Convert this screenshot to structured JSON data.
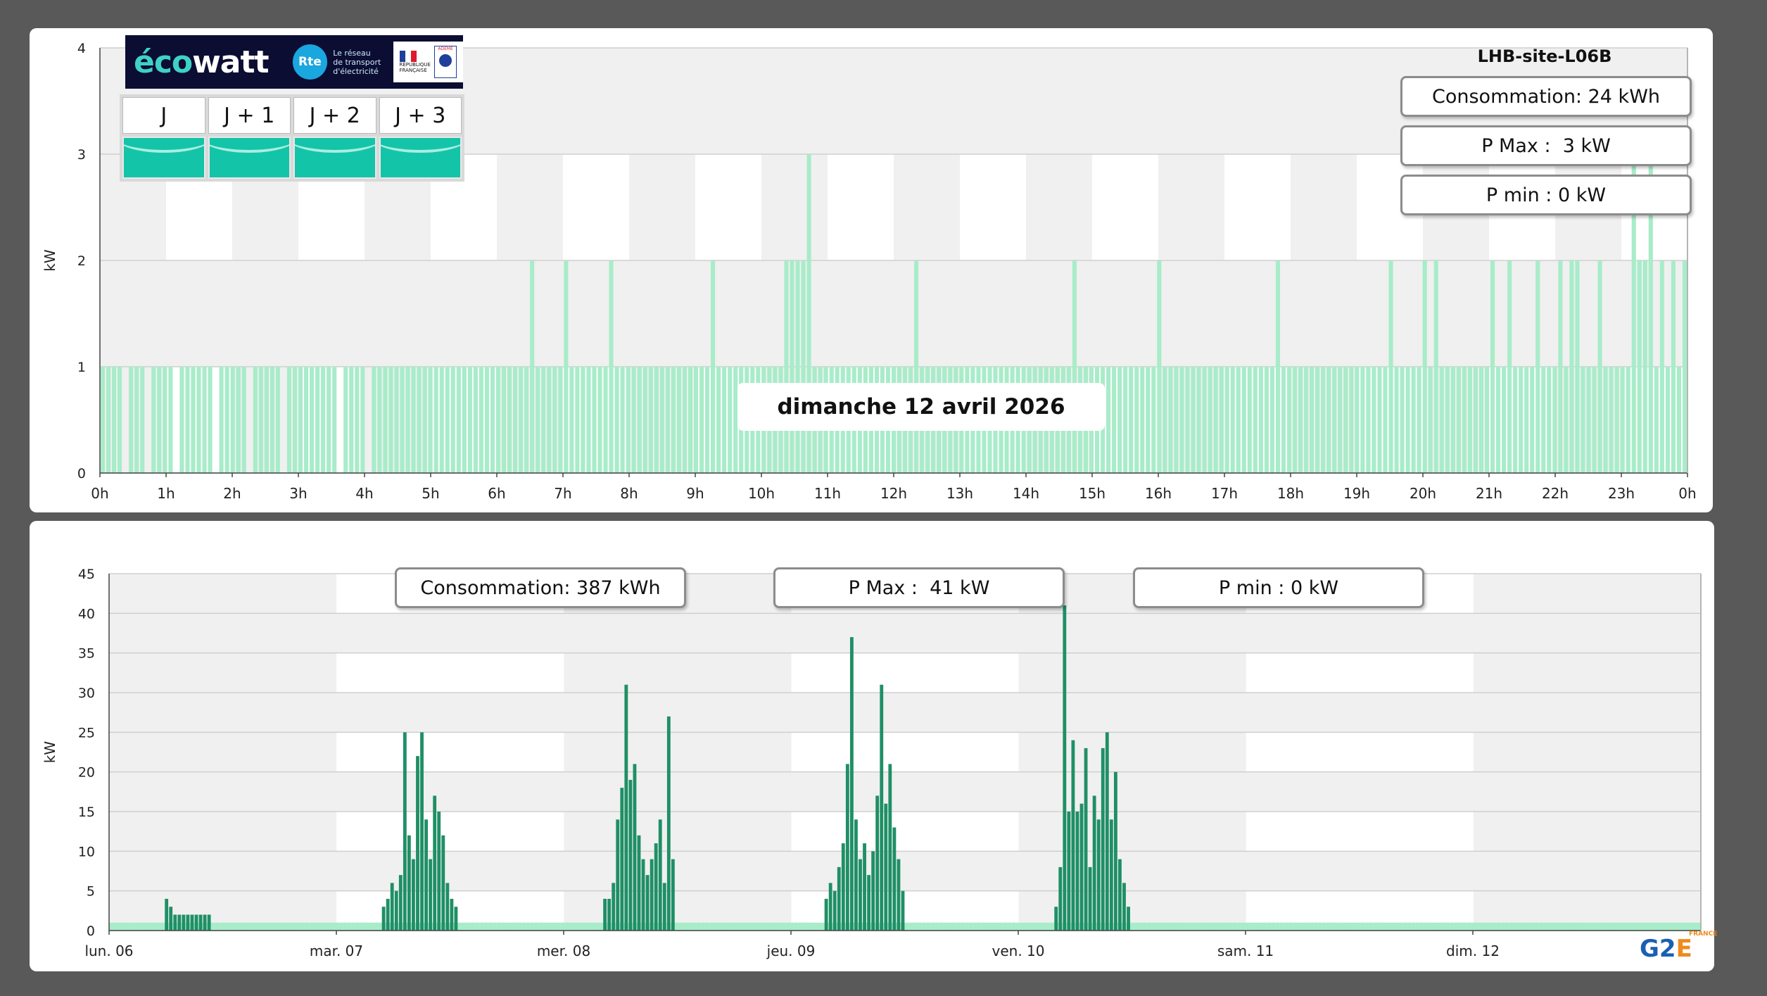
{
  "top": {
    "site_title": "LHB-site-L06B",
    "consumption": "Consommation: 24 kWh",
    "pmax": "P Max :  3 kW",
    "pmin": "P min : 0 kW",
    "date_label": "dimanche 12 avril 2026"
  },
  "bottom": {
    "consumption": "Consommation: 387 kWh",
    "pmax": "P Max :  41 kW",
    "pmin": "P min : 0 kW"
  },
  "ecowatt": {
    "brand": "écowatt",
    "rte_logo": "Rte",
    "rte_text": [
      "Le réseau",
      "de transport",
      "d'électricité"
    ],
    "rf_text": [
      "RÉPUBLIQUE",
      "FRANÇAISE"
    ],
    "ademe": "ADEME",
    "days": [
      "J",
      "J + 1",
      "J + 2",
      "J + 3"
    ],
    "level_color": "#14c4a8"
  },
  "logo": {
    "text_g2": "G2",
    "text_e": "E",
    "text_fr": "FRANCE"
  },
  "colors": {
    "daily_bar": "#a8ecc9",
    "weekly_bar": "#1f8f66",
    "weekly_base": "#a8ecc9",
    "band_grey": "#f0f0f0",
    "grid": "#cfcfcf"
  },
  "chart_data": [
    {
      "type": "bar",
      "title": "",
      "ylabel": "kW",
      "ylim": [
        0,
        4
      ],
      "yticks": [
        0,
        1,
        2,
        3,
        4
      ],
      "xticks": [
        "0h",
        "1h",
        "2h",
        "3h",
        "4h",
        "5h",
        "6h",
        "7h",
        "8h",
        "9h",
        "10h",
        "11h",
        "12h",
        "13h",
        "14h",
        "15h",
        "16h",
        "17h",
        "18h",
        "19h",
        "20h",
        "21h",
        "22h",
        "23h",
        "0h"
      ],
      "interval_minutes": 5,
      "series": [
        {
          "values": [
            1,
            1,
            1,
            1,
            0,
            1,
            1,
            1,
            0,
            1,
            1,
            1,
            1,
            0,
            1,
            1,
            1,
            1,
            1,
            1,
            0,
            1,
            1,
            1,
            1,
            1,
            0,
            1,
            1,
            1,
            1,
            1,
            0,
            1,
            1,
            1,
            1,
            1,
            1,
            1,
            1,
            1,
            0,
            1,
            1,
            1,
            1,
            0,
            1,
            1,
            1,
            1,
            1,
            1,
            1,
            1,
            1,
            1,
            1,
            1,
            1,
            1,
            1,
            1,
            1,
            1,
            1,
            1,
            1,
            1,
            1,
            1,
            1,
            1,
            1,
            1,
            2,
            1,
            1,
            1,
            1,
            1,
            2,
            1,
            1,
            1,
            1,
            1,
            1,
            1,
            2,
            1,
            1,
            1,
            1,
            1,
            1,
            1,
            1,
            1,
            1,
            1,
            1,
            1,
            1,
            1,
            1,
            1,
            2,
            1,
            1,
            1,
            1,
            1,
            1,
            1,
            1,
            1,
            1,
            1,
            1,
            2,
            2,
            2,
            2,
            3,
            1,
            1,
            1,
            1,
            1,
            1,
            1,
            1,
            1,
            1,
            1,
            1,
            1,
            1,
            1,
            1,
            1,
            1,
            2,
            1,
            1,
            1,
            1,
            1,
            1,
            1,
            1,
            1,
            1,
            1,
            1,
            1,
            1,
            1,
            1,
            1,
            1,
            1,
            1,
            1,
            1,
            1,
            1,
            1,
            1,
            1,
            2,
            1,
            1,
            1,
            1,
            1,
            1,
            1,
            1,
            1,
            1,
            1,
            1,
            1,
            1,
            2,
            1,
            1,
            1,
            1,
            1,
            1,
            1,
            1,
            1,
            1,
            1,
            1,
            1,
            1,
            1,
            1,
            1,
            1,
            1,
            1,
            2,
            1,
            1,
            1,
            1,
            1,
            1,
            1,
            1,
            1,
            1,
            1,
            1,
            1,
            1,
            1,
            1,
            1,
            1,
            1,
            2,
            1,
            1,
            1,
            1,
            1,
            2,
            1,
            2,
            1,
            1,
            1,
            1,
            1,
            1,
            1,
            1,
            1,
            2,
            1,
            1,
            2,
            1,
            1,
            1,
            1,
            2,
            1,
            1,
            1,
            2,
            1,
            2,
            2,
            1,
            1,
            1,
            2,
            1,
            1,
            1,
            1,
            1,
            3,
            2,
            2,
            3,
            1,
            2,
            1,
            2,
            1,
            2
          ]
        }
      ]
    },
    {
      "type": "bar",
      "title": "",
      "ylabel": "kW",
      "ylim": [
        0,
        45
      ],
      "yticks": [
        0,
        5,
        10,
        15,
        20,
        25,
        30,
        35,
        40,
        45
      ],
      "xticks": [
        "lun. 06",
        "mar. 07",
        "mer. 08",
        "jeu. 09",
        "ven. 10",
        "sam. 11",
        "dim. 12"
      ],
      "interval_minutes": 30,
      "series": [
        {
          "values": [
            1,
            1,
            1,
            1,
            1,
            1,
            1,
            1,
            1,
            1,
            1,
            1,
            1,
            4,
            3,
            2,
            2,
            2,
            2,
            2,
            2,
            2,
            2,
            2,
            1,
            1,
            1,
            1,
            1,
            1,
            1,
            1,
            1,
            1,
            1,
            1,
            1,
            1,
            1,
            1,
            1,
            1,
            1,
            1,
            1,
            1,
            1,
            1,
            1,
            1,
            1,
            1,
            1,
            1,
            1,
            1,
            1,
            1,
            1,
            1,
            1,
            1,
            1,
            1,
            3,
            4,
            6,
            5,
            7,
            25,
            12,
            9,
            22,
            25,
            14,
            9,
            17,
            15,
            12,
            6,
            4,
            3,
            1,
            1,
            1,
            1,
            1,
            1,
            1,
            1,
            1,
            1,
            1,
            1,
            1,
            1,
            1,
            1,
            1,
            1,
            1,
            1,
            1,
            1,
            1,
            1,
            1,
            1,
            1,
            1,
            1,
            1,
            1,
            1,
            1,
            1,
            4,
            4,
            6,
            14,
            18,
            31,
            19,
            21,
            12,
            9,
            7,
            9,
            11,
            14,
            6,
            27,
            9,
            1,
            1,
            1,
            1,
            1,
            1,
            1,
            1,
            1,
            1,
            1,
            1,
            1,
            1,
            1,
            1,
            1,
            1,
            1,
            1,
            1,
            1,
            1,
            1,
            1,
            1,
            1,
            1,
            1,
            1,
            1,
            1,
            1,
            1,
            1,
            4,
            6,
            5,
            8,
            11,
            21,
            37,
            14,
            9,
            11,
            7,
            10,
            17,
            31,
            16,
            21,
            13,
            9,
            5,
            1,
            1,
            1,
            1,
            1,
            1,
            1,
            1,
            1,
            1,
            1,
            1,
            1,
            1,
            1,
            1,
            1,
            1,
            1,
            1,
            1,
            1,
            1,
            1,
            1,
            1,
            1,
            1,
            1,
            1,
            1,
            1,
            1,
            1,
            1,
            3,
            8,
            41,
            15,
            24,
            15,
            16,
            23,
            8,
            17,
            14,
            23,
            25,
            14,
            20,
            9,
            6,
            3,
            1,
            1,
            1,
            1,
            1,
            1,
            1,
            1,
            1,
            1,
            1,
            1,
            1,
            1,
            1,
            1,
            1,
            1,
            1,
            1,
            1,
            1,
            1,
            1,
            1,
            1,
            1,
            1,
            1,
            1,
            1,
            1,
            1,
            1,
            1,
            1,
            1,
            1,
            1,
            1,
            1,
            1,
            1,
            1,
            1,
            1,
            1,
            1,
            1,
            1,
            1,
            1,
            1,
            1,
            1,
            1,
            1,
            1,
            1,
            1,
            1,
            1,
            1,
            1,
            1,
            1,
            1,
            1,
            1,
            1,
            1,
            1,
            1,
            1,
            1,
            1,
            1,
            1,
            1,
            1,
            1,
            1,
            1,
            1,
            1,
            1,
            1,
            1,
            1,
            1,
            1,
            1,
            1,
            1,
            1,
            1,
            1,
            1,
            1,
            1,
            1,
            1,
            1,
            1,
            1,
            1,
            1,
            1,
            1,
            1,
            1,
            1,
            1,
            1,
            1,
            1,
            1,
            1,
            1,
            1,
            1,
            1,
            1,
            1,
            1,
            1,
            1,
            1,
            1,
            1,
            1,
            1,
            1,
            1
          ]
        }
      ]
    }
  ]
}
